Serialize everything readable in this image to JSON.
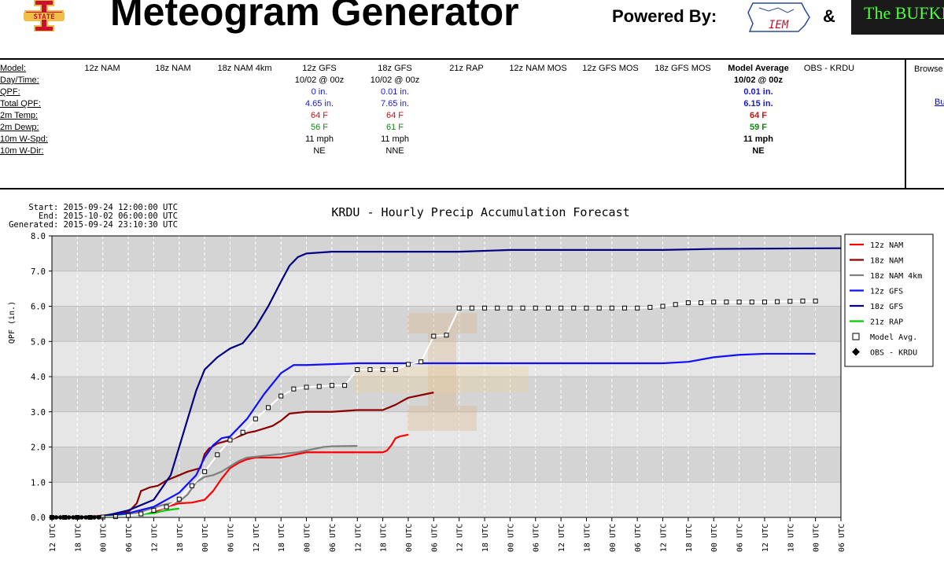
{
  "header": {
    "title": "Meteogram Generator",
    "powered_label": "Powered By:",
    "iem_logo_text": "IEM",
    "amp": "&",
    "bufkit_text": "The BUFKIT",
    "logo_text": "STATE"
  },
  "table": {
    "labels": [
      "Model:",
      "Day/Time:",
      "QPF:",
      "Total QPF:",
      "2m Temp:",
      "2m Dewp:",
      "10m W-Spd:",
      "10m W-Dir:"
    ],
    "columns": [
      {
        "model": "12z NAM",
        "daytime": "",
        "qpf": "",
        "total": "",
        "temp": "",
        "dewp": "",
        "wspd": "",
        "wdir": ""
      },
      {
        "model": "18z NAM",
        "daytime": "",
        "qpf": "",
        "total": "",
        "temp": "",
        "dewp": "",
        "wspd": "",
        "wdir": ""
      },
      {
        "model": "18z NAM 4km",
        "daytime": "",
        "qpf": "",
        "total": "",
        "temp": "",
        "dewp": "",
        "wspd": "",
        "wdir": ""
      },
      {
        "model": "12z GFS",
        "daytime": "10/02 @ 00z",
        "qpf": "0 in.",
        "total": "4.65 in.",
        "temp": "64 F",
        "dewp": "56 F",
        "wspd": "11 mph",
        "wdir": "NE"
      },
      {
        "model": "18z GFS",
        "daytime": "10/02 @ 00z",
        "qpf": "0.01 in.",
        "total": "7.65 in.",
        "temp": "64 F",
        "dewp": "61 F",
        "wspd": "11 mph",
        "wdir": "NNE"
      },
      {
        "model": "21z RAP",
        "daytime": "",
        "qpf": "",
        "total": "",
        "temp": "",
        "dewp": "",
        "wspd": "",
        "wdir": ""
      },
      {
        "model": "12z NAM MOS",
        "daytime": "",
        "qpf": "",
        "total": "",
        "temp": "",
        "dewp": "",
        "wspd": "",
        "wdir": ""
      },
      {
        "model": "12z GFS MOS",
        "daytime": "",
        "qpf": "",
        "total": "",
        "temp": "",
        "dewp": "",
        "wspd": "",
        "wdir": ""
      },
      {
        "model": "18z GFS MOS",
        "daytime": "",
        "qpf": "",
        "total": "",
        "temp": "",
        "dewp": "",
        "wspd": "",
        "wdir": ""
      },
      {
        "model": "Model Average",
        "daytime": "10/02 @ 00z",
        "qpf": "0.01 in.",
        "total": "6.15 in.",
        "temp": "64 F",
        "dewp": "59 F",
        "wspd": "11 mph",
        "wdir": "NE"
      },
      {
        "model": "OBS - KRDU",
        "daytime": "",
        "qpf": "",
        "total": "",
        "temp": "",
        "dewp": "",
        "wspd": "",
        "wdir": ""
      }
    ],
    "browse_label": "Browse",
    "browse_link": "Bu"
  },
  "colors": {
    "red": "#ff0000",
    "darkred": "#8b0000",
    "gray": "#808080",
    "blue": "#1010ff",
    "navy": "#000080",
    "green": "#00cc00"
  },
  "chart_data": {
    "type": "line",
    "title": "KRDU - Hourly Precip Accumulation Forecast",
    "info": [
      "Start: 2015-09-24 12:00:00 UTC",
      "End: 2015-10-02 06:00:00 UTC",
      "Generated: 2015-09-24 23:10:30 UTC"
    ],
    "ylabel": "QPF (in.)",
    "ylim": [
      0,
      8
    ],
    "yticks": [
      "0.0",
      "1.0",
      "2.0",
      "3.0",
      "4.0",
      "5.0",
      "6.0",
      "7.0",
      "8.0"
    ],
    "x_unit": "hours after Start",
    "xlim": [
      0,
      186
    ],
    "xticks": [
      "12 UTC",
      "18 UTC",
      "00 UTC",
      "06 UTC",
      "12 UTC",
      "18 UTC",
      "00 UTC",
      "06 UTC",
      "12 UTC",
      "18 UTC",
      "00 UTC",
      "06 UTC",
      "12 UTC",
      "18 UTC",
      "00 UTC",
      "06 UTC",
      "12 UTC",
      "18 UTC",
      "00 UTC",
      "06 UTC",
      "12 UTC",
      "18 UTC",
      "00 UTC",
      "06 UTC",
      "12 UTC",
      "18 UTC",
      "00 UTC",
      "06 UTC",
      "12 UTC",
      "18 UTC",
      "00 UTC",
      "06 UTC"
    ],
    "legend_position": "right",
    "series": [
      {
        "name": "12z NAM",
        "color": "#ff0000",
        "style": "line",
        "points": [
          [
            0,
            0
          ],
          [
            6,
            0
          ],
          [
            12,
            0.02
          ],
          [
            18,
            0.07
          ],
          [
            24,
            0.15
          ],
          [
            27,
            0.3
          ],
          [
            30,
            0.4
          ],
          [
            33,
            0.42
          ],
          [
            36,
            0.5
          ],
          [
            38,
            0.75
          ],
          [
            40,
            1.1
          ],
          [
            42,
            1.4
          ],
          [
            44,
            1.55
          ],
          [
            46,
            1.65
          ],
          [
            48,
            1.7
          ],
          [
            54,
            1.7
          ],
          [
            56,
            1.75
          ],
          [
            60,
            1.85
          ],
          [
            78,
            1.85
          ],
          [
            79,
            1.9
          ],
          [
            80,
            2.05
          ],
          [
            81,
            2.25
          ],
          [
            82,
            2.3
          ],
          [
            84,
            2.35
          ]
        ]
      },
      {
        "name": "18z NAM",
        "color": "#8b0000",
        "style": "line",
        "points": [
          [
            6,
            0
          ],
          [
            12,
            0.05
          ],
          [
            18,
            0.15
          ],
          [
            20,
            0.4
          ],
          [
            21,
            0.75
          ],
          [
            23,
            0.85
          ],
          [
            25,
            0.9
          ],
          [
            27,
            1.05
          ],
          [
            30,
            1.2
          ],
          [
            32,
            1.3
          ],
          [
            35,
            1.4
          ],
          [
            36,
            1.8
          ],
          [
            37,
            1.95
          ],
          [
            39,
            2.1
          ],
          [
            42,
            2.2
          ],
          [
            46,
            2.4
          ],
          [
            48,
            2.45
          ],
          [
            52,
            2.6
          ],
          [
            54,
            2.75
          ],
          [
            56,
            2.95
          ],
          [
            60,
            3.0
          ],
          [
            66,
            3.0
          ],
          [
            72,
            3.05
          ],
          [
            78,
            3.05
          ],
          [
            81,
            3.2
          ],
          [
            84,
            3.4
          ],
          [
            88,
            3.5
          ],
          [
            90,
            3.55
          ]
        ]
      },
      {
        "name": "18z NAM 4km",
        "color": "#808080",
        "style": "line",
        "points": [
          [
            6,
            0
          ],
          [
            12,
            0.02
          ],
          [
            18,
            0.08
          ],
          [
            22,
            0.2
          ],
          [
            26,
            0.35
          ],
          [
            30,
            0.45
          ],
          [
            32,
            0.65
          ],
          [
            34,
            1.0
          ],
          [
            36,
            1.15
          ],
          [
            38,
            1.2
          ],
          [
            40,
            1.3
          ],
          [
            42,
            1.45
          ],
          [
            44,
            1.6
          ],
          [
            46,
            1.7
          ],
          [
            50,
            1.75
          ],
          [
            54,
            1.8
          ],
          [
            58,
            1.85
          ],
          [
            62,
            1.95
          ],
          [
            64,
            2.0
          ],
          [
            66,
            2.02
          ],
          [
            72,
            2.03
          ]
        ]
      },
      {
        "name": "12z GFS",
        "color": "#1010ff",
        "style": "line",
        "points": [
          [
            0,
            0
          ],
          [
            12,
            0.02
          ],
          [
            18,
            0.12
          ],
          [
            24,
            0.3
          ],
          [
            30,
            0.7
          ],
          [
            34,
            1.2
          ],
          [
            36,
            1.7
          ],
          [
            38,
            2.05
          ],
          [
            40,
            2.25
          ],
          [
            42,
            2.3
          ],
          [
            46,
            2.8
          ],
          [
            50,
            3.5
          ],
          [
            54,
            4.1
          ],
          [
            57,
            4.33
          ],
          [
            60,
            4.33
          ],
          [
            72,
            4.38
          ],
          [
            144,
            4.38
          ],
          [
            150,
            4.42
          ],
          [
            156,
            4.55
          ],
          [
            162,
            4.62
          ],
          [
            168,
            4.65
          ],
          [
            180,
            4.65
          ]
        ]
      },
      {
        "name": "18z GFS",
        "color": "#000080",
        "style": "line",
        "points": [
          [
            6,
            0
          ],
          [
            12,
            0.03
          ],
          [
            18,
            0.2
          ],
          [
            24,
            0.5
          ],
          [
            28,
            1.2
          ],
          [
            32,
            2.8
          ],
          [
            34,
            3.6
          ],
          [
            36,
            4.2
          ],
          [
            39,
            4.55
          ],
          [
            42,
            4.8
          ],
          [
            45,
            4.95
          ],
          [
            48,
            5.4
          ],
          [
            51,
            6.0
          ],
          [
            54,
            6.7
          ],
          [
            56,
            7.15
          ],
          [
            58,
            7.4
          ],
          [
            60,
            7.5
          ],
          [
            66,
            7.55
          ],
          [
            96,
            7.55
          ],
          [
            108,
            7.6
          ],
          [
            144,
            7.6
          ],
          [
            156,
            7.63
          ],
          [
            186,
            7.65
          ]
        ]
      },
      {
        "name": "21z RAP",
        "color": "#00cc00",
        "style": "line",
        "points": [
          [
            9,
            0
          ],
          [
            15,
            0.03
          ],
          [
            20,
            0.08
          ],
          [
            24,
            0.12
          ],
          [
            26,
            0.18
          ],
          [
            28,
            0.22
          ],
          [
            30,
            0.25
          ]
        ]
      },
      {
        "name": "Model Avg.",
        "color": "#ffffff",
        "style": "avg",
        "points": [
          [
            0,
            0
          ],
          [
            3,
            0
          ],
          [
            6,
            0
          ],
          [
            9,
            0
          ],
          [
            12,
            0.01
          ],
          [
            15,
            0.02
          ],
          [
            18,
            0.05
          ],
          [
            21,
            0.1
          ],
          [
            24,
            0.2
          ],
          [
            27,
            0.3
          ],
          [
            30,
            0.52
          ],
          [
            33,
            0.9
          ],
          [
            36,
            1.3
          ],
          [
            39,
            1.78
          ],
          [
            42,
            2.2
          ],
          [
            45,
            2.42
          ],
          [
            48,
            2.8
          ],
          [
            51,
            3.12
          ],
          [
            54,
            3.45
          ],
          [
            57,
            3.65
          ],
          [
            60,
            3.7
          ],
          [
            63,
            3.72
          ],
          [
            66,
            3.75
          ],
          [
            69,
            3.75
          ],
          [
            72,
            4.2
          ],
          [
            75,
            4.2
          ],
          [
            78,
            4.2
          ],
          [
            81,
            4.2
          ],
          [
            84,
            4.35
          ],
          [
            87,
            4.42
          ],
          [
            90,
            5.15
          ],
          [
            93,
            5.18
          ],
          [
            96,
            5.95
          ],
          [
            99,
            5.95
          ],
          [
            102,
            5.95
          ],
          [
            105,
            5.95
          ],
          [
            108,
            5.95
          ],
          [
            111,
            5.95
          ],
          [
            114,
            5.95
          ],
          [
            117,
            5.95
          ],
          [
            120,
            5.95
          ],
          [
            123,
            5.95
          ],
          [
            126,
            5.95
          ],
          [
            129,
            5.95
          ],
          [
            132,
            5.95
          ],
          [
            135,
            5.95
          ],
          [
            138,
            5.95
          ],
          [
            141,
            5.97
          ],
          [
            144,
            6.0
          ],
          [
            147,
            6.05
          ],
          [
            150,
            6.1
          ],
          [
            153,
            6.1
          ],
          [
            156,
            6.12
          ],
          [
            159,
            6.12
          ],
          [
            162,
            6.12
          ],
          [
            165,
            6.12
          ],
          [
            168,
            6.12
          ],
          [
            171,
            6.13
          ],
          [
            174,
            6.14
          ],
          [
            177,
            6.15
          ],
          [
            180,
            6.15
          ]
        ]
      },
      {
        "name": "OBS - KRDU",
        "color": "#000000",
        "style": "obs",
        "points": [
          [
            0,
            0
          ],
          [
            1,
            0
          ],
          [
            2,
            0
          ],
          [
            3,
            0
          ],
          [
            4,
            0
          ],
          [
            5,
            0
          ],
          [
            6,
            0
          ],
          [
            7,
            0
          ],
          [
            8,
            0
          ],
          [
            9,
            0
          ],
          [
            10,
            0
          ],
          [
            11,
            0
          ]
        ]
      }
    ]
  }
}
